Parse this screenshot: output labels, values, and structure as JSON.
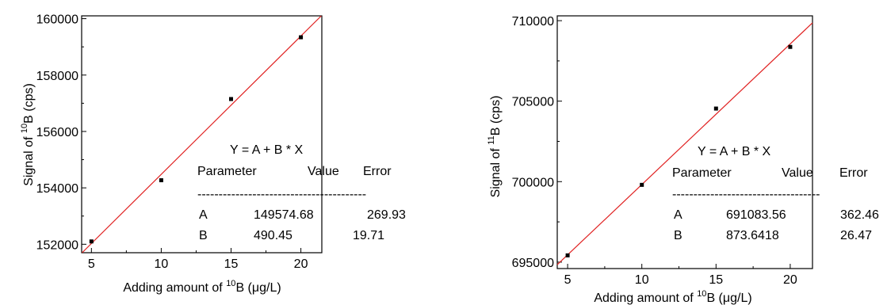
{
  "chart_data": [
    {
      "type": "scatter",
      "title": "",
      "xlabel": "Adding amount of ¹⁰B (μg/L)",
      "ylabel": "Signal of ¹⁰B (cps)",
      "xlim": [
        4.3,
        21.5
      ],
      "ylim": [
        151700,
        160100
      ],
      "xticks": [
        5,
        10,
        15,
        20
      ],
      "yticks": [
        152000,
        154000,
        156000,
        158000,
        160000
      ],
      "series": [
        {
          "points": [
            [
              5,
              152100
            ],
            [
              10,
              154270
            ],
            [
              15,
              157150
            ],
            [
              20,
              159340
            ]
          ],
          "color": "#000000"
        }
      ],
      "fit_line": {
        "intercept": 149574.68,
        "slope": 490.45,
        "color": "#e02020"
      },
      "fit_table": {
        "equation": "Y = A + B * X",
        "headers": [
          "Parameter",
          "Value",
          "Error"
        ],
        "separator": "----------------------------------------",
        "rows": [
          [
            "A",
            "149574.68",
            "269.93"
          ],
          [
            "B",
            "490.45",
            "19.71"
          ]
        ]
      }
    },
    {
      "type": "scatter",
      "title": "",
      "xlabel": "Adding amount of ¹⁰B (μg/L)",
      "ylabel": "Signal of ¹¹B (cps)",
      "xlim": [
        4.3,
        21.5
      ],
      "ylim": [
        694600,
        710300
      ],
      "xticks": [
        5,
        10,
        15,
        20
      ],
      "yticks": [
        695000,
        700000,
        705000,
        710000
      ],
      "series": [
        {
          "points": [
            [
              5,
              695420
            ],
            [
              10,
              699800
            ],
            [
              15,
              704540
            ],
            [
              20,
              708370
            ]
          ],
          "color": "#000000"
        }
      ],
      "fit_line": {
        "intercept": 691083.56,
        "slope": 873.6418,
        "color": "#e02020"
      },
      "fit_table": {
        "equation": "Y = A + B * X",
        "headers": [
          "Parameter",
          "Value",
          "Error"
        ],
        "separator": "-----------------------------------",
        "rows": [
          [
            "A",
            "691083.56",
            "362.46"
          ],
          [
            "B",
            "873.6418",
            "26.47"
          ]
        ]
      }
    }
  ]
}
